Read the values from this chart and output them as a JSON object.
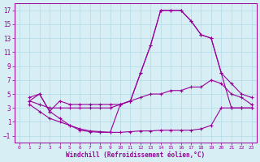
{
  "background_color": "#d7eef4",
  "grid_color": "#b8dde8",
  "line_color": "#990099",
  "marker": "+",
  "xlabel": "Windchill (Refroidissement éolien,°C)",
  "xlim": [
    -0.5,
    23.5
  ],
  "ylim": [
    -2,
    18
  ],
  "xticks": [
    0,
    1,
    2,
    3,
    4,
    5,
    6,
    7,
    8,
    9,
    10,
    11,
    12,
    13,
    14,
    15,
    16,
    17,
    18,
    19,
    20,
    21,
    22,
    23
  ],
  "yticks": [
    -1,
    1,
    3,
    5,
    7,
    9,
    11,
    13,
    15,
    17
  ],
  "curves": [
    {
      "x": [
        1,
        2,
        3,
        4,
        5,
        6,
        7,
        8,
        9,
        10,
        11,
        12,
        13,
        14,
        15,
        16,
        17,
        18,
        19,
        20,
        21,
        22,
        23
      ],
      "y": [
        4.5,
        5,
        2.5,
        4,
        3.5,
        3.5,
        3.5,
        3.5,
        3.5,
        3.5,
        4,
        8,
        12,
        17,
        17,
        17,
        15.5,
        13.5,
        13,
        8,
        3,
        3,
        3
      ]
    },
    {
      "x": [
        1,
        2,
        3,
        4,
        5,
        6,
        7,
        8,
        9,
        10,
        11,
        12,
        13,
        14,
        15,
        16,
        17,
        18,
        19,
        20,
        21,
        22,
        23
      ],
      "y": [
        4,
        5,
        2.5,
        1.5,
        0.5,
        -0.2,
        -0.4,
        -0.5,
        -0.5,
        3.5,
        4,
        8,
        12,
        17,
        17,
        17,
        15.5,
        13.5,
        13,
        8,
        6.5,
        5,
        4.5
      ]
    },
    {
      "x": [
        1,
        2,
        3,
        4,
        5,
        6,
        7,
        8,
        9,
        10,
        11,
        12,
        13,
        14,
        15,
        16,
        17,
        18,
        19,
        20,
        21,
        22,
        23
      ],
      "y": [
        4,
        3.5,
        3,
        3,
        3,
        3,
        3,
        3,
        3,
        3.5,
        4,
        4.5,
        5,
        5,
        5.5,
        5.5,
        6,
        6,
        7,
        6.5,
        5,
        4.5,
        3.5
      ]
    },
    {
      "x": [
        1,
        2,
        3,
        4,
        5,
        6,
        7,
        8,
        9,
        10,
        11,
        12,
        13,
        14,
        15,
        16,
        17,
        18,
        19,
        20,
        21,
        22,
        23
      ],
      "y": [
        3.5,
        2.5,
        1.5,
        1,
        0.5,
        0,
        -0.3,
        -0.4,
        -0.5,
        -0.5,
        -0.4,
        -0.3,
        -0.3,
        -0.2,
        -0.2,
        -0.2,
        -0.2,
        0,
        0.5,
        3,
        3,
        3,
        3
      ]
    }
  ]
}
